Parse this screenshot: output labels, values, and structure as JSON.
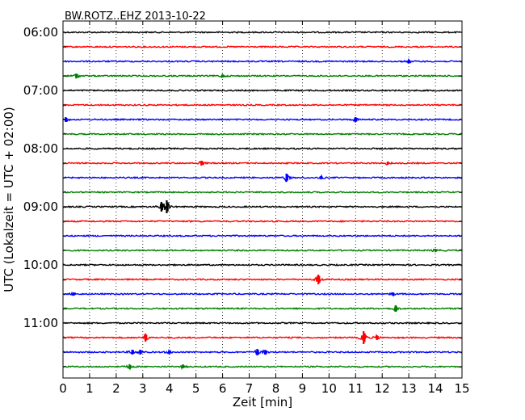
{
  "chart_data": {
    "type": "line",
    "title": "BW.ROTZ..EHZ 2013-10-22",
    "xlabel": "Zeit  [min]",
    "ylabel": "UTC (Lokalzeit = UTC + 02:00)",
    "xlim": [
      0,
      15
    ],
    "x_ticks": [
      "0",
      "1",
      "2",
      "3",
      "4",
      "5",
      "6",
      "7",
      "8",
      "9",
      "10",
      "11",
      "12",
      "13",
      "14",
      "15"
    ],
    "y_ticks": [
      "06:00",
      "07:00",
      "08:00",
      "09:00",
      "10:00",
      "11:00"
    ],
    "grid": true,
    "trace_interval_min": 15,
    "colors": [
      "#000000",
      "#ff0000",
      "#0000ff",
      "#008000"
    ],
    "traces": [
      {
        "start": "06:00",
        "color": "#000000",
        "events": []
      },
      {
        "start": "06:15",
        "color": "#ff0000",
        "events": []
      },
      {
        "start": "06:30",
        "color": "#0000ff",
        "events": [
          {
            "t": 13.0,
            "amp": 2
          }
        ]
      },
      {
        "start": "06:45",
        "color": "#008000",
        "events": [
          {
            "t": 0.5,
            "amp": 3
          },
          {
            "t": 6.0,
            "amp": 2
          }
        ]
      },
      {
        "start": "07:00",
        "color": "#000000",
        "events": []
      },
      {
        "start": "07:15",
        "color": "#ff0000",
        "events": []
      },
      {
        "start": "07:30",
        "color": "#0000ff",
        "events": [
          {
            "t": 0.1,
            "amp": 3
          },
          {
            "t": 11.0,
            "amp": 3
          }
        ]
      },
      {
        "start": "07:45",
        "color": "#008000",
        "events": []
      },
      {
        "start": "08:00",
        "color": "#000000",
        "events": []
      },
      {
        "start": "08:15",
        "color": "#ff0000",
        "events": [
          {
            "t": 5.2,
            "amp": 3
          },
          {
            "t": 12.2,
            "amp": 2
          }
        ]
      },
      {
        "start": "08:30",
        "color": "#0000ff",
        "events": [
          {
            "t": 8.4,
            "amp": 5
          },
          {
            "t": 9.7,
            "amp": 2
          }
        ]
      },
      {
        "start": "08:45",
        "color": "#008000",
        "events": []
      },
      {
        "start": "09:00",
        "color": "#000000",
        "events": [
          {
            "t": 3.7,
            "amp": 6
          },
          {
            "t": 3.9,
            "amp": 8
          }
        ]
      },
      {
        "start": "09:15",
        "color": "#ff0000",
        "events": []
      },
      {
        "start": "09:30",
        "color": "#0000ff",
        "events": []
      },
      {
        "start": "09:45",
        "color": "#008000",
        "events": [
          {
            "t": 14.0,
            "amp": 2
          }
        ]
      },
      {
        "start": "10:00",
        "color": "#000000",
        "events": []
      },
      {
        "start": "10:15",
        "color": "#ff0000",
        "events": [
          {
            "t": 9.6,
            "amp": 6
          }
        ]
      },
      {
        "start": "10:30",
        "color": "#0000ff",
        "events": [
          {
            "t": 0.4,
            "amp": 2
          },
          {
            "t": 12.4,
            "amp": 2
          }
        ]
      },
      {
        "start": "10:45",
        "color": "#008000",
        "events": [
          {
            "t": 12.5,
            "amp": 4
          }
        ]
      },
      {
        "start": "11:00",
        "color": "#000000",
        "events": []
      },
      {
        "start": "11:15",
        "color": "#ff0000",
        "events": [
          {
            "t": 3.1,
            "amp": 5
          },
          {
            "t": 11.3,
            "amp": 8
          },
          {
            "t": 11.8,
            "amp": 3
          }
        ]
      },
      {
        "start": "11:30",
        "color": "#0000ff",
        "events": [
          {
            "t": 2.6,
            "amp": 3
          },
          {
            "t": 2.9,
            "amp": 3
          },
          {
            "t": 4.0,
            "amp": 2
          },
          {
            "t": 7.3,
            "amp": 4
          },
          {
            "t": 7.6,
            "amp": 3
          }
        ]
      },
      {
        "start": "11:45",
        "color": "#008000",
        "events": [
          {
            "t": 2.5,
            "amp": 3
          },
          {
            "t": 4.5,
            "amp": 2
          }
        ]
      }
    ]
  }
}
